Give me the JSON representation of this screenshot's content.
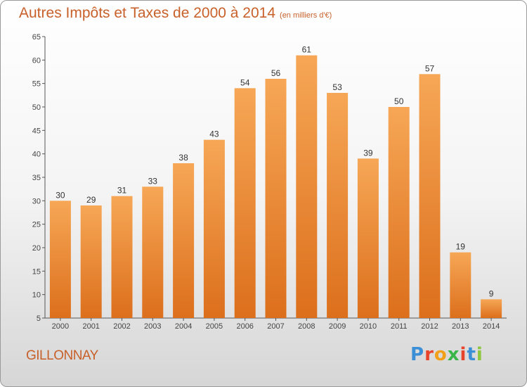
{
  "header": {
    "title": "Autres Impôts et Taxes de 2000 à 2014",
    "unit": "(en milliers d'€)"
  },
  "commune": "GILLONNAY",
  "brand": {
    "letters": [
      "P",
      "r",
      "o",
      "x",
      "i",
      "t",
      "i"
    ],
    "colors": [
      "#3a8fd6",
      "#e8442c",
      "#f2a019",
      "#3ab54a",
      "#e8442c",
      "#3a8fd6",
      "#8dc63f"
    ]
  },
  "colors": {
    "bar_top": "#f6a756",
    "bar_bottom": "#dc6f1c",
    "accent": "#c8602a"
  },
  "chart_data": {
    "type": "bar",
    "categories": [
      "2000",
      "2001",
      "2002",
      "2003",
      "2004",
      "2005",
      "2006",
      "2007",
      "2008",
      "2009",
      "2010",
      "2011",
      "2012",
      "2013",
      "2014"
    ],
    "values": [
      30,
      29,
      31,
      33,
      38,
      43,
      54,
      56,
      61,
      53,
      39,
      50,
      57,
      19,
      9
    ],
    "title": "Autres Impôts et Taxes de 2000 à 2014",
    "xlabel": "",
    "ylabel": "",
    "ylim": [
      5,
      65
    ],
    "yticks": [
      5,
      10,
      15,
      20,
      25,
      30,
      35,
      40,
      45,
      50,
      55,
      60,
      65
    ],
    "grid": false,
    "legend": "none"
  }
}
